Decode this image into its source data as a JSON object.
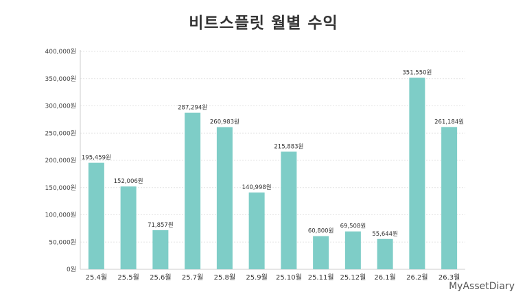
{
  "watermark": "MyAssetDiary",
  "chart_data": {
    "type": "bar",
    "title": "비트스플릿 월별 수익",
    "xlabel": "",
    "ylabel": "",
    "categories": [
      "25.4월",
      "25.5월",
      "25.6월",
      "25.7월",
      "25.8월",
      "25.9월",
      "25.10월",
      "25.11월",
      "25.12월",
      "26.1월",
      "26.2월",
      "26.3월"
    ],
    "values": [
      195459,
      152006,
      71857,
      287294,
      260983,
      140998,
      215883,
      60800,
      69508,
      55644,
      351550,
      261184
    ],
    "data_labels": [
      "195,459원",
      "152,006원",
      "71,857원",
      "287,294원",
      "260,983원",
      "140,998원",
      "215,883원",
      "60,800원",
      "69,508원",
      "55,644원",
      "351,550원",
      "261,184원"
    ],
    "y_ticks": [
      0,
      50000,
      100000,
      150000,
      200000,
      250000,
      300000,
      350000,
      400000
    ],
    "y_tick_labels": [
      "0원",
      "50,000원",
      "100,000원",
      "150,000원",
      "200,000원",
      "250,000원",
      "300,000원",
      "350,000원",
      "400,000원"
    ],
    "ylim": [
      0,
      400000
    ],
    "grid": true,
    "bar_color": "#7ecdc7",
    "grid_color": "#e3e3e3"
  }
}
